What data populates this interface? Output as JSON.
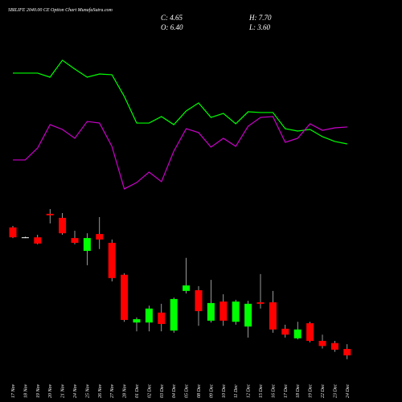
{
  "header": {
    "title": "SBILIFE 2040.00 CE Option Chart MunafaSutra.com",
    "close_label": "C: 4.65",
    "high_label": "H: 7.70",
    "open_label": "O: 6.40",
    "low_label": "L: 3.60"
  },
  "chart_data": [
    {
      "type": "line",
      "ylim": [
        0,
        100
      ],
      "series": [
        {
          "color": "#00ff00",
          "values": [
            82.8,
            82.8,
            82.8,
            80,
            91.7,
            85.6,
            80,
            82.2,
            81.7,
            66.7,
            48.3,
            48.3,
            52.8,
            47.2,
            56.7,
            62.2,
            52.2,
            55,
            47.8,
            56.1,
            55.6,
            55.6,
            44.4,
            42.8,
            43.9,
            38.9,
            35.6,
            33.9
          ]
        },
        {
          "color": "#cc00cc",
          "values": [
            22.8,
            22.8,
            31.1,
            47.2,
            43.9,
            37.8,
            49.4,
            48.3,
            32.2,
            2.8,
            7.2,
            14.4,
            7.8,
            28.9,
            44.4,
            41.7,
            31.7,
            37.8,
            32.2,
            46.1,
            52.2,
            52.8,
            35,
            37.8,
            47.8,
            43.3,
            45,
            45.6
          ]
        }
      ]
    },
    {
      "type": "candlestick",
      "ylim": [
        2.9,
        44.5
      ],
      "up_color": "#00ff00",
      "down_color": "#ff0000",
      "flat_color": "#ffffff",
      "categories": [
        "17 Nov",
        "18 Nov",
        "19 Nov",
        "20 Nov",
        "21 Nov",
        "24 Nov",
        "25 Nov",
        "26 Nov",
        "27 Nov",
        "28 Nov",
        "01 Dec",
        "02 Dec",
        "03 Dec",
        "04 Dec",
        "05 Dec",
        "08 Dec",
        "09 Dec",
        "10 Dec",
        "11 Dec",
        "12 Dec",
        "15 Dec",
        "16 Dec",
        "17 Dec",
        "18 Dec",
        "19 Dec",
        "22 Dec",
        "23 Dec",
        "24 Dec"
      ],
      "open": [
        39.5,
        36.8,
        36.8,
        43.2,
        42.1,
        36.6,
        33.1,
        37.7,
        35.3,
        26.6,
        13.6,
        13.6,
        16.3,
        11.4,
        22.2,
        22.4,
        14.1,
        19.3,
        13.8,
        12.5,
        19.1,
        19.1,
        11.9,
        9.3,
        13.4,
        8.6,
        8.0,
        6.4
      ],
      "high": [
        39.9,
        37.0,
        37.5,
        44.5,
        43.4,
        38.6,
        37.9,
        42.3,
        36.2,
        27.0,
        15.0,
        18.2,
        18.7,
        20.4,
        31.2,
        23.5,
        25.2,
        21.3,
        19.8,
        19.5,
        26.8,
        22.2,
        13.0,
        13.8,
        13.8,
        10.3,
        8.6,
        7.7
      ],
      "low": [
        36.6,
        36.6,
        34.9,
        40.6,
        37.5,
        34.9,
        29.2,
        33.6,
        24.8,
        13.8,
        11.2,
        11.2,
        11.2,
        10.8,
        21.5,
        12.7,
        13.6,
        12.7,
        13.0,
        9.5,
        17.4,
        10.8,
        9.5,
        9.0,
        8.2,
        6.5,
        5.6,
        3.6
      ],
      "close": [
        36.8,
        36.8,
        35.1,
        42.8,
        37.9,
        35.3,
        36.6,
        36.2,
        25.7,
        14.3,
        14.5,
        17.4,
        13.2,
        20.0,
        23.7,
        16.7,
        18.9,
        14.1,
        19.3,
        18.7,
        18.7,
        11.7,
        10.3,
        11.7,
        8.6,
        7.2,
        6.2,
        4.65
      ]
    }
  ]
}
